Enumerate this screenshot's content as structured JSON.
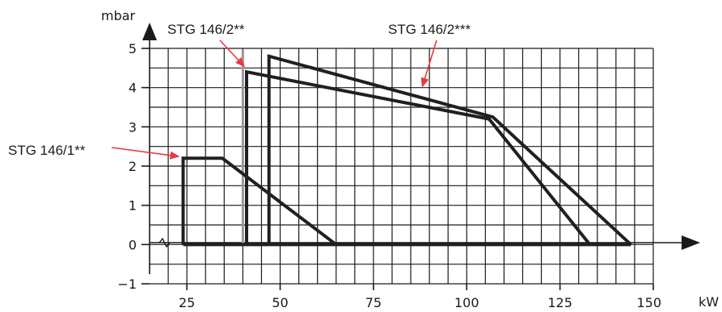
{
  "chart_data": {
    "type": "line",
    "x_unit": "kW",
    "y_unit": "mbar",
    "xlim": [
      15,
      150
    ],
    "ylim": [
      -1,
      5
    ],
    "x_ticks": [
      {
        "value": 25,
        "label": "25"
      },
      {
        "value": 50,
        "label": "50"
      },
      {
        "value": 75,
        "label": "75"
      },
      {
        "value": 100,
        "label": "100"
      },
      {
        "value": 125,
        "label": "125"
      },
      {
        "value": 150,
        "label": "150"
      }
    ],
    "y_ticks": [
      {
        "value": -1,
        "label": "−1"
      },
      {
        "value": 0,
        "label": "0"
      },
      {
        "value": 1,
        "label": "1"
      },
      {
        "value": 2,
        "label": "2"
      },
      {
        "value": 3,
        "label": "3"
      },
      {
        "value": 4,
        "label": "4"
      },
      {
        "value": 5,
        "label": "5"
      }
    ],
    "grid": true,
    "grid_step": {
      "x": 5,
      "y": 0.5
    },
    "series": [
      {
        "name": "STG 146/1**",
        "points": [
          [
            24,
            0
          ],
          [
            24,
            2.2
          ],
          [
            34.5,
            2.2
          ],
          [
            65,
            0
          ]
        ]
      },
      {
        "name": "STG 146/2**",
        "points": [
          [
            41,
            0
          ],
          [
            41,
            4.4
          ],
          [
            106,
            3.2
          ],
          [
            133,
            0
          ]
        ]
      },
      {
        "name": "STG 146/2***",
        "points": [
          [
            47,
            0
          ],
          [
            47,
            4.8
          ],
          [
            107,
            3.25
          ],
          [
            144,
            0
          ]
        ]
      }
    ],
    "baseline": {
      "from": 24,
      "to": 144,
      "y": 0
    },
    "reference_line_x": 40,
    "colors": {
      "series": "#231f20",
      "annotation_arrow": "#e8393f",
      "grid": "#1a1a1a"
    }
  }
}
